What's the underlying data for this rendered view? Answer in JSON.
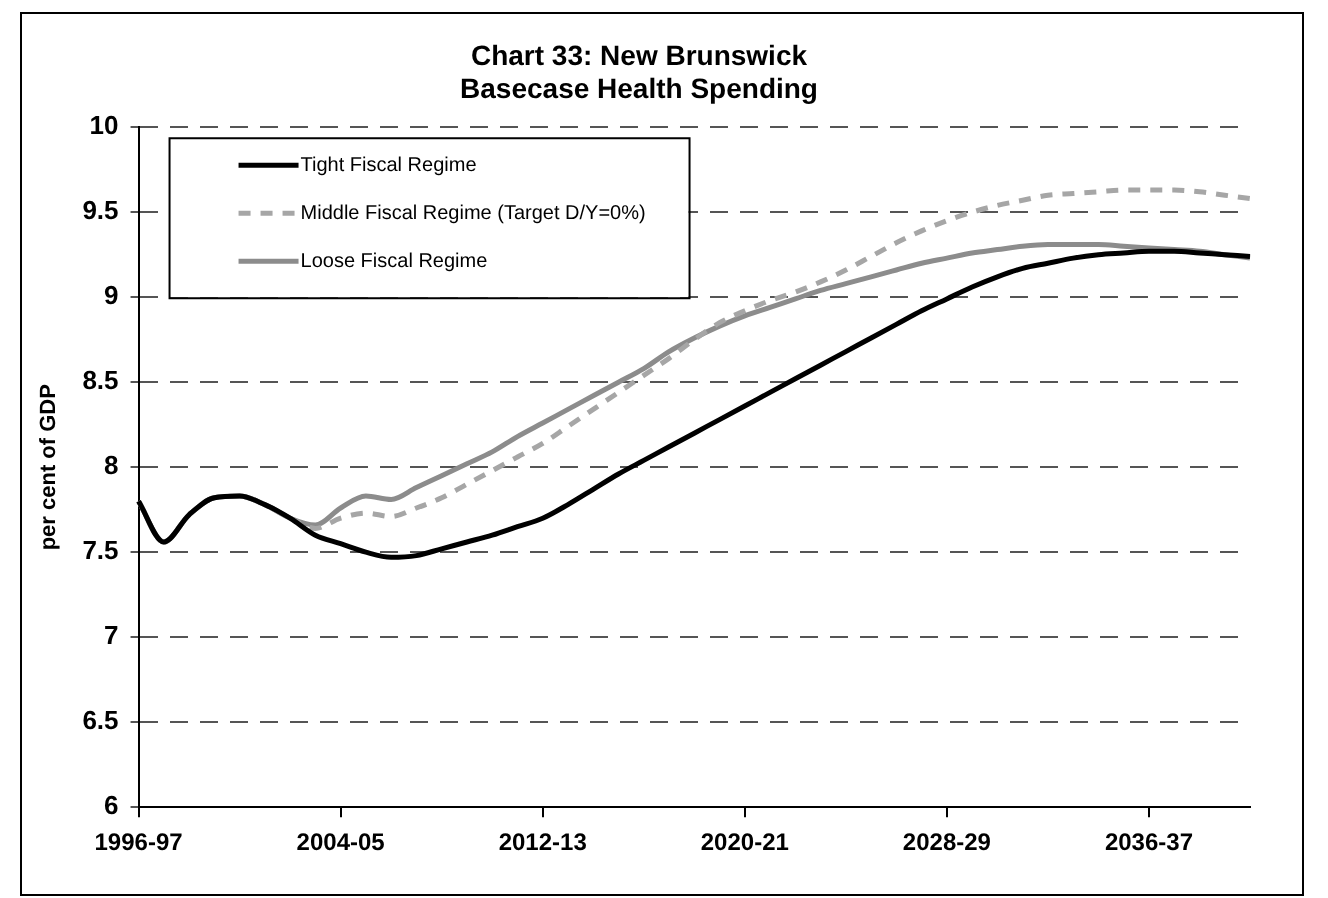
{
  "chart_data": {
    "type": "line",
    "title": "Chart 33: New Brunswick\nBasecase Health Spending",
    "ylabel": "per cent of GDP",
    "categories": [
      "1996-97",
      null,
      null,
      null,
      null,
      null,
      null,
      null,
      "2004-05",
      null,
      null,
      null,
      null,
      null,
      null,
      null,
      "2012-13",
      null,
      null,
      null,
      null,
      null,
      null,
      null,
      "2020-21",
      null,
      null,
      null,
      null,
      null,
      null,
      null,
      "2028-29",
      null,
      null,
      null,
      null,
      null,
      null,
      null,
      "2036-37",
      null,
      null,
      null,
      null
    ],
    "series": [
      {
        "name": "Tight Fiscal Regime",
        "color": "#000000",
        "line_style": "solid",
        "values": [
          7.8,
          7.56,
          7.72,
          7.82,
          7.83,
          7.78,
          7.7,
          7.6,
          7.55,
          7.5,
          7.47,
          7.48,
          7.52,
          7.56,
          7.6,
          7.65,
          7.7,
          7.78,
          7.87,
          7.96,
          8.04,
          8.12,
          8.2,
          8.28,
          8.36,
          8.44,
          8.52,
          8.6,
          8.68,
          8.76,
          8.84,
          8.92,
          8.99,
          9.06,
          9.12,
          9.17,
          9.2,
          9.23,
          9.25,
          9.26,
          9.27,
          9.27,
          9.26,
          9.25,
          9.24
        ]
      },
      {
        "name": "Middle Fiscal Regime (Target D/Y=0%)",
        "color": "#a6a6a6",
        "line_style": "dashed",
        "values": [
          7.8,
          7.56,
          7.72,
          7.82,
          7.83,
          7.78,
          7.7,
          7.64,
          7.7,
          7.73,
          7.71,
          7.76,
          7.82,
          7.9,
          7.98,
          8.06,
          8.14,
          8.24,
          8.34,
          8.44,
          8.54,
          8.64,
          8.75,
          8.85,
          8.92,
          8.98,
          9.03,
          9.09,
          9.16,
          9.24,
          9.32,
          9.39,
          9.45,
          9.5,
          9.54,
          9.57,
          9.6,
          9.61,
          9.62,
          9.63,
          9.63,
          9.63,
          9.62,
          9.6,
          9.58
        ]
      },
      {
        "name": "Loose Fiscal Regime",
        "color": "#8c8c8c",
        "line_style": "solid",
        "values": [
          7.8,
          7.56,
          7.72,
          7.82,
          7.83,
          7.78,
          7.7,
          7.66,
          7.76,
          7.83,
          7.81,
          7.88,
          7.95,
          8.02,
          8.09,
          8.18,
          8.26,
          8.34,
          8.42,
          8.5,
          8.58,
          8.68,
          8.76,
          8.83,
          8.89,
          8.94,
          8.99,
          9.04,
          9.08,
          9.12,
          9.16,
          9.2,
          9.23,
          9.26,
          9.28,
          9.3,
          9.31,
          9.31,
          9.31,
          9.3,
          9.29,
          9.28,
          9.27,
          9.25,
          9.23
        ]
      }
    ],
    "ylim": [
      6,
      10
    ],
    "yticks": [
      6,
      6.5,
      7,
      7.5,
      8,
      8.5,
      9,
      9.5,
      10
    ],
    "grid": "y",
    "legend": "top left",
    "marker": "none"
  }
}
